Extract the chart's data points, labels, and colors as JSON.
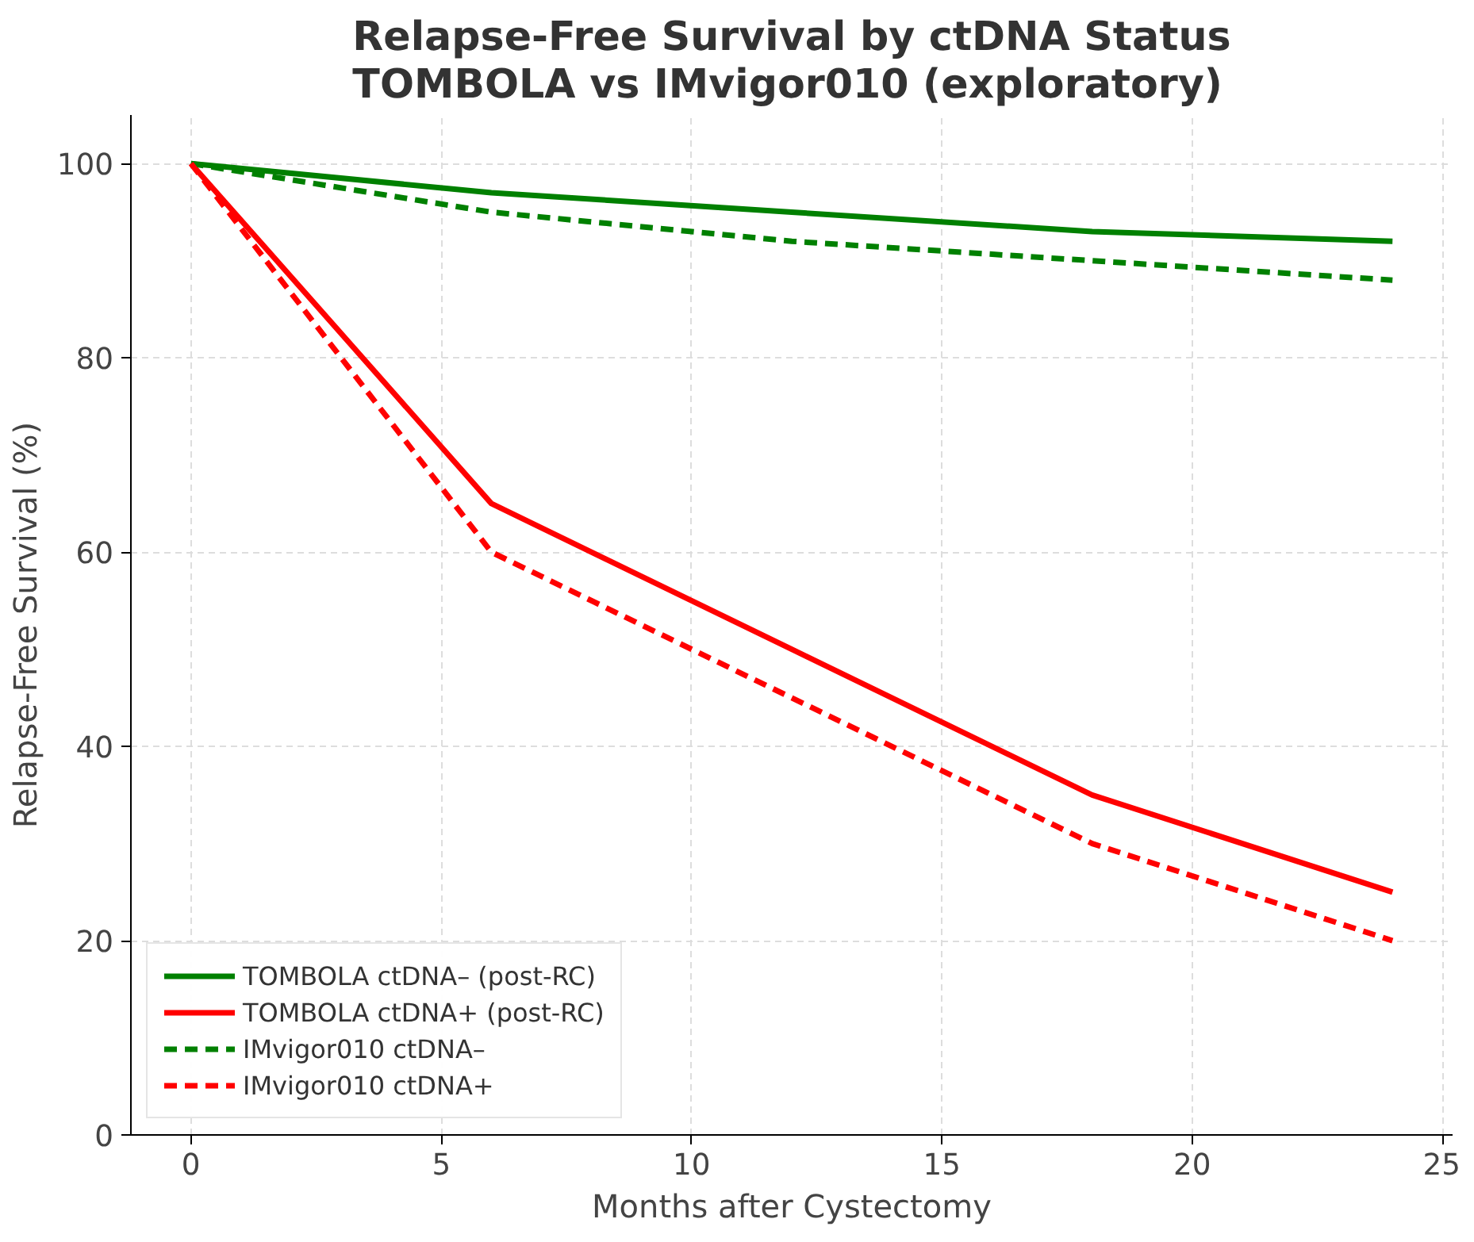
{
  "chart_data": {
    "type": "line",
    "title": "Relapse-Free Survival by ctDNA Status\nTOMBOLA vs IMvigor010 (exploratory)",
    "xlabel": "Months after Cystectomy",
    "ylabel": "Relapse-Free Survival (%)",
    "x": [
      0,
      6,
      12,
      18,
      24
    ],
    "series": [
      {
        "name": "TOMBOLA ctDNA– (post-RC)",
        "color": "#008000",
        "values": [
          100,
          97,
          95,
          93,
          92
        ],
        "line_style": "solid"
      },
      {
        "name": "TOMBOLA ctDNA+ (post-RC)",
        "color": "#ff0000",
        "values": [
          100,
          65,
          50,
          35,
          25
        ],
        "line_style": "solid"
      },
      {
        "name": "IMvigor010 ctDNA–",
        "color": "#008000",
        "values": [
          100,
          95,
          92,
          90,
          88
        ],
        "line_style": "dashed"
      },
      {
        "name": "IMvigor010 ctDNA+",
        "color": "#ff0000",
        "values": [
          100,
          60,
          45,
          30,
          20
        ],
        "line_style": "dashed"
      }
    ],
    "xlim": [
      -1.2,
      25.2
    ],
    "ylim": [
      0,
      105
    ],
    "xticks": [
      0,
      5,
      10,
      15,
      20,
      25
    ],
    "yticks": [
      0,
      20,
      40,
      60,
      80,
      100
    ],
    "grid": true,
    "legend": "bottom left",
    "marker": "none"
  }
}
